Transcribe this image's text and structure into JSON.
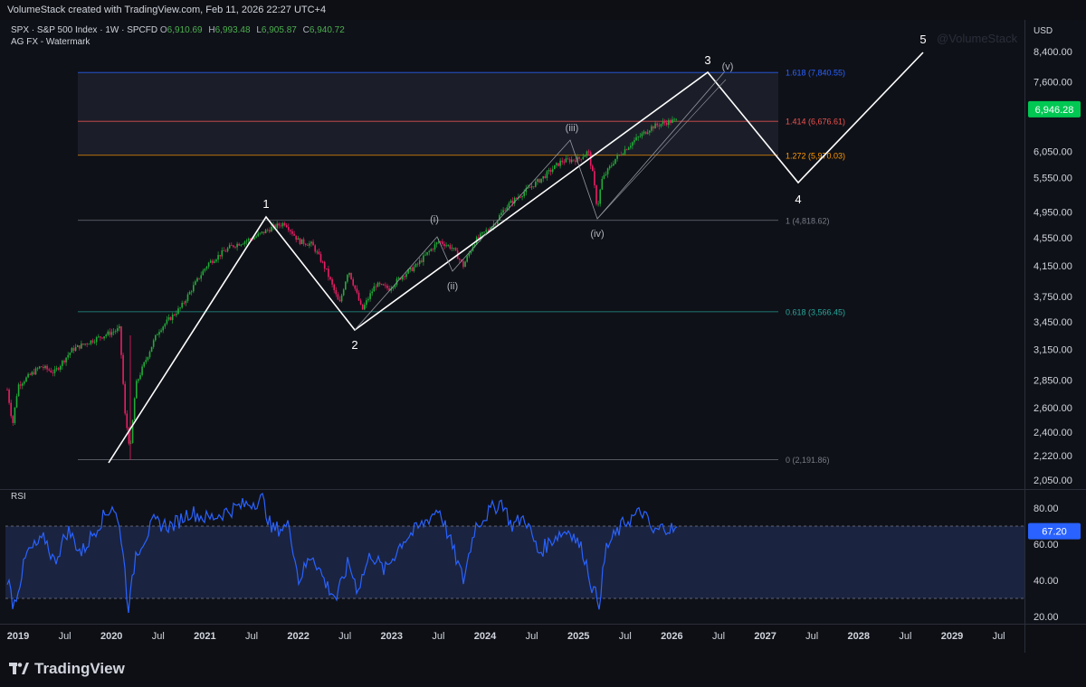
{
  "topbar": {
    "text": "VolumeStack created with TradingView.com, Feb 11, 2026 22:27 UTC+4"
  },
  "legend": {
    "symbol": "SPX · S&P 500 Index · 1W · SPCFD",
    "open_label": "O",
    "open": "6,910.69",
    "high_label": "H",
    "high": "6,993.48",
    "low_label": "L",
    "low": "6,905.87",
    "close_label": "C",
    "close": "6,940.72",
    "indicator": "AG FX - Watermark"
  },
  "watermark": "@VolumeStack",
  "currency": "USD",
  "price_axis": [
    "8,400.00",
    "7,600.00",
    "6,050.00",
    "5,550.00",
    "4,950.00",
    "4,550.00",
    "4,150.00",
    "3,750.00",
    "3,450.00",
    "3,150.00",
    "2,850.00",
    "2,600.00",
    "2,400.00",
    "2,220.00",
    "2,050.00"
  ],
  "price_ticks_logical": [
    8400,
    7600,
    6050,
    5550,
    4950,
    4550,
    4150,
    3750,
    3450,
    3150,
    2850,
    2600,
    2400,
    2220,
    2050
  ],
  "current_price": {
    "value": "6,946.28",
    "color": "#00c853"
  },
  "rsi_axis": [
    "80.00",
    "60.00",
    "40.00",
    "20.00"
  ],
  "rsi_current": {
    "label": "RSI",
    "value": "67.20",
    "color": "#2962ff"
  },
  "time_axis": [
    "2019",
    "Jul",
    "2020",
    "Jul",
    "2021",
    "Jul",
    "2022",
    "Jul",
    "2023",
    "Jul",
    "2024",
    "Jul",
    "2025",
    "Jul",
    "2026",
    "Jul",
    "2027",
    "Jul",
    "2028",
    "Jul",
    "2029",
    "Jul"
  ],
  "fib_levels": [
    {
      "label": "1.618 (7,840.55)",
      "value": 7840.55,
      "color": "#2962ff"
    },
    {
      "label": "1.414 (6,676.61)",
      "value": 6676.61,
      "color": "#ef5350"
    },
    {
      "label": "1.272 (5,970.03)",
      "value": 5970.03,
      "color": "#ff9800"
    },
    {
      "label": "1 (4,818.62)",
      "value": 4818.62,
      "color": "#787b86"
    },
    {
      "label": "0.618 (3,566.45)",
      "value": 3566.45,
      "color": "#26a69a"
    },
    {
      "label": "0 (2,191.86)",
      "value": 2191.86,
      "color": "#787b86"
    }
  ],
  "waves": {
    "major": [
      "1",
      "2",
      "3",
      "4",
      "5"
    ],
    "minor": [
      "(i)",
      "(ii)",
      "(iii)",
      "(iv)",
      "(v)"
    ]
  },
  "colors": {
    "up": "#22ab38",
    "down": "#e91e63",
    "bg": "#0d0f14",
    "rsi_line": "#2962ff"
  },
  "footer": {
    "brand": "TradingView"
  }
}
